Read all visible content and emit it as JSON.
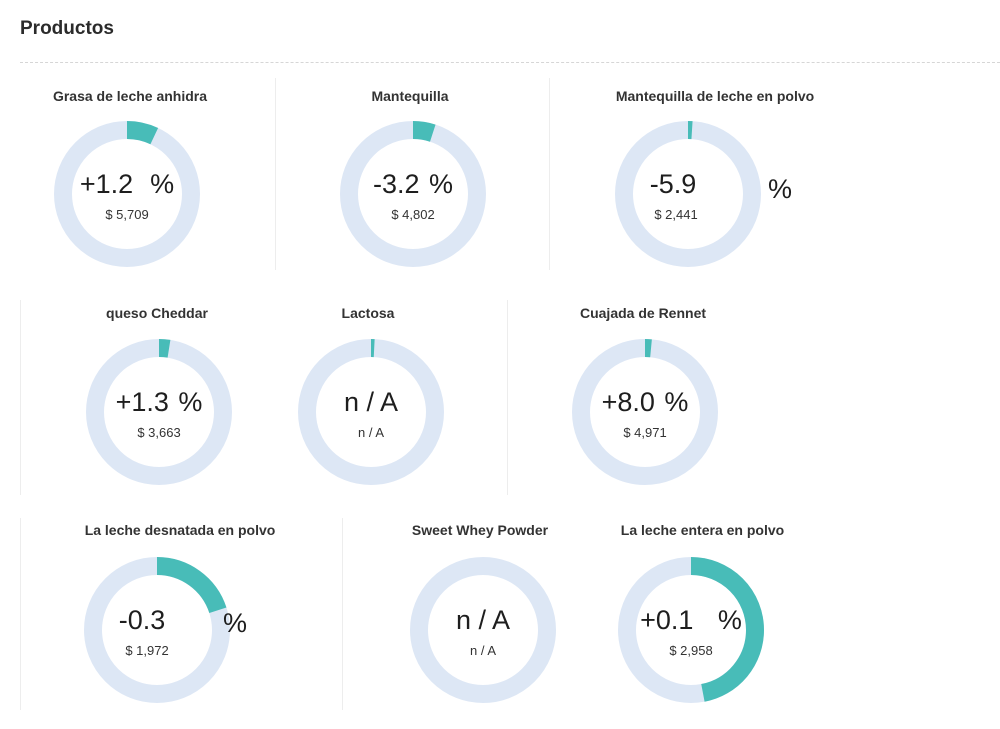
{
  "page": {
    "title": "Productos"
  },
  "colors": {
    "track": "#dde7f5",
    "fill": "#48bcb8",
    "text": "#1e1e1e"
  },
  "products": [
    {
      "id": "grasa",
      "name": "Grasa de leche anhidra",
      "change": "+1.2",
      "suffix": "%",
      "price": "$ 5,709",
      "fill_fraction": 0.07
    },
    {
      "id": "mantequilla",
      "name": "Mantequilla",
      "change": "-3.2",
      "suffix": "%",
      "price": "$ 4,802",
      "fill_fraction": 0.05
    },
    {
      "id": "mantequilla-polvo",
      "name": "Mantequilla de leche en polvo",
      "change": "-5.9",
      "suffix": "%",
      "price": "$ 2,441",
      "fill_fraction": 0.01
    },
    {
      "id": "cheddar",
      "name": "queso Cheddar",
      "change": "+1.3",
      "suffix": "%",
      "price": "$ 3,663",
      "fill_fraction": 0.025
    },
    {
      "id": "lactosa",
      "name": "Lactosa",
      "change": "n / A",
      "suffix": "",
      "price": "n / A",
      "fill_fraction": 0.008
    },
    {
      "id": "rennet",
      "name": "Cuajada de Rennet",
      "change": "+8.0",
      "suffix": "%",
      "price": "$ 4,971",
      "fill_fraction": 0.015
    },
    {
      "id": "desnatada",
      "name": "La leche desnatada en polvo",
      "change": "-0.3",
      "suffix": "%",
      "price": "$ 1,972",
      "fill_fraction": 0.2
    },
    {
      "id": "whey",
      "name": "Sweet Whey Powder",
      "change": "n / A",
      "suffix": "",
      "price": "n / A",
      "fill_fraction": 0.0
    },
    {
      "id": "entera",
      "name": "La leche entera en polvo",
      "change": "+0.1",
      "suffix": "%",
      "price": "$ 2,958",
      "fill_fraction": 0.47
    }
  ]
}
